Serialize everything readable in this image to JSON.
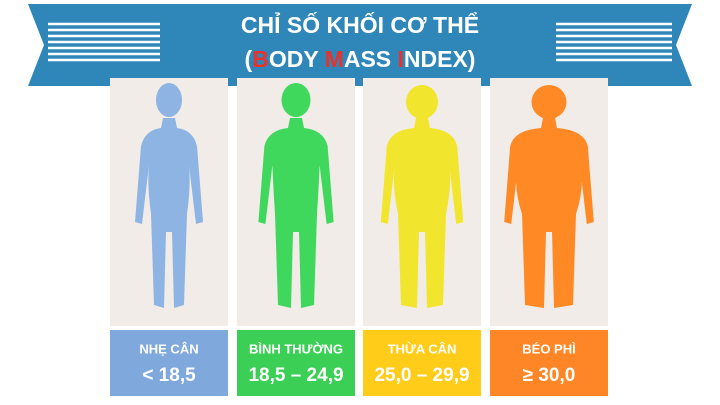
{
  "header": {
    "title_line1": "CHỈ SỐ KHỐI CƠ THỂ",
    "title_line2": [
      {
        "text": "(",
        "color": "#ffffff"
      },
      {
        "text": "B",
        "color": "#e8322c"
      },
      {
        "text": "ODY ",
        "color": "#ffffff"
      },
      {
        "text": "M",
        "color": "#e8322c"
      },
      {
        "text": "ASS ",
        "color": "#ffffff"
      },
      {
        "text": "I",
        "color": "#e8322c"
      },
      {
        "text": "NDEX)",
        "color": "#ffffff"
      }
    ]
  },
  "panels": [
    {
      "label": "NHẸ CÂN",
      "range": "< 18,5",
      "color": "#7fa8dc",
      "figure_color": "#8db4e2"
    },
    {
      "label": "BÌNH THƯỜNG",
      "range": "18,5 – 24,9",
      "color": "#3ccf55",
      "figure_color": "#3fd85c"
    },
    {
      "label": "THỪA CÂN",
      "range": "25,0 – 29,9",
      "color": "#ffcc1a",
      "figure_color": "#f2e52e"
    },
    {
      "label": "BÉO PHÌ",
      "range": "≥ 30,0",
      "color": "#ff8626",
      "figure_color": "#ff8a25"
    }
  ]
}
